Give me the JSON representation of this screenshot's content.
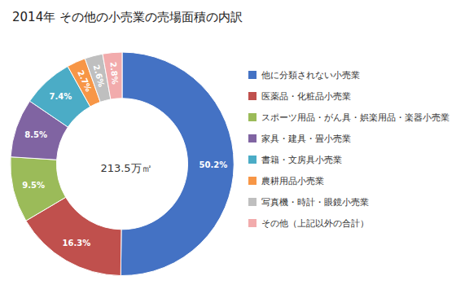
{
  "chart_data": {
    "type": "pie",
    "title": "2014年 その他の小売業の売場面積の内訳",
    "annotations": [
      "213.5万㎡"
    ],
    "categories": [
      "他に分類されない小売業",
      "医薬品・化粧品小売業",
      "スポーツ用品・がん具・娯楽用品・楽器小売業",
      "家具・建具・畳小売業",
      "書籍・文房具小売業",
      "農耕用品小売業",
      "写真機・時計・眼鏡小売業",
      "その他（上記以外の合計）"
    ],
    "values": [
      50.2,
      16.3,
      9.5,
      8.5,
      7.4,
      2.7,
      2.6,
      2.8
    ],
    "value_labels": [
      "50.2%",
      "16.3%",
      "9.5%",
      "8.5%",
      "7.4%",
      "2.7%",
      "2.6%",
      "2.8%"
    ],
    "colors": [
      "#4472C4",
      "#C0504D",
      "#9BBB59",
      "#8064A2",
      "#4BACC6",
      "#F79646",
      "#BFbfbf",
      "#F2ABAC"
    ],
    "data_labels": true,
    "legend": "right"
  }
}
